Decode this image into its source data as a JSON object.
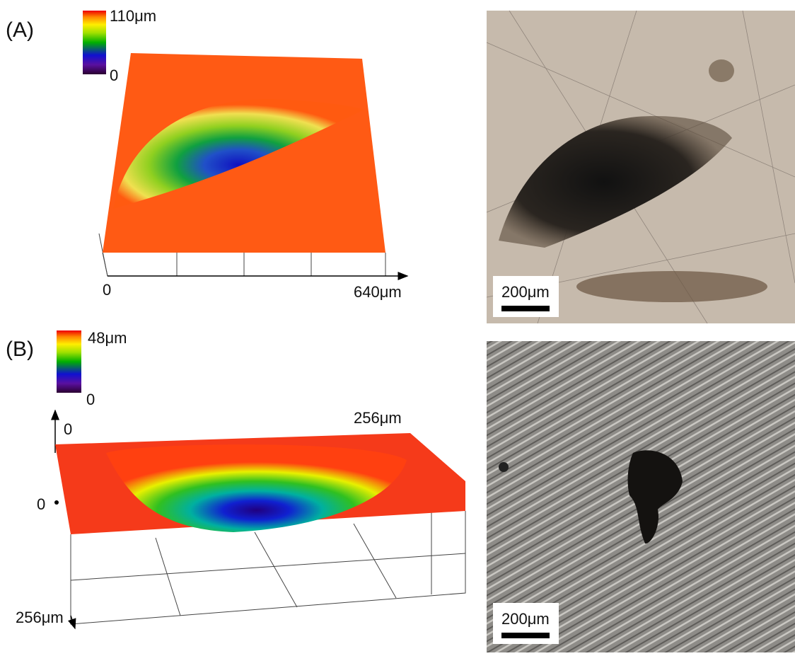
{
  "panels": [
    {
      "label": "(A)",
      "colorbar": {
        "max": "110μm",
        "min": "0"
      },
      "axes": {
        "x_start": "0",
        "x_end": "640μm"
      },
      "micrograph": {
        "scale_bar": "200μm"
      }
    },
    {
      "label": "(B)",
      "colorbar": {
        "max": "48μm",
        "min": "0"
      },
      "axes": {
        "x_start": "0",
        "x_end": "256μm",
        "z_zero": "0",
        "y_end": "256μm"
      },
      "micrograph": {
        "scale_bar": "200μm"
      }
    }
  ]
}
